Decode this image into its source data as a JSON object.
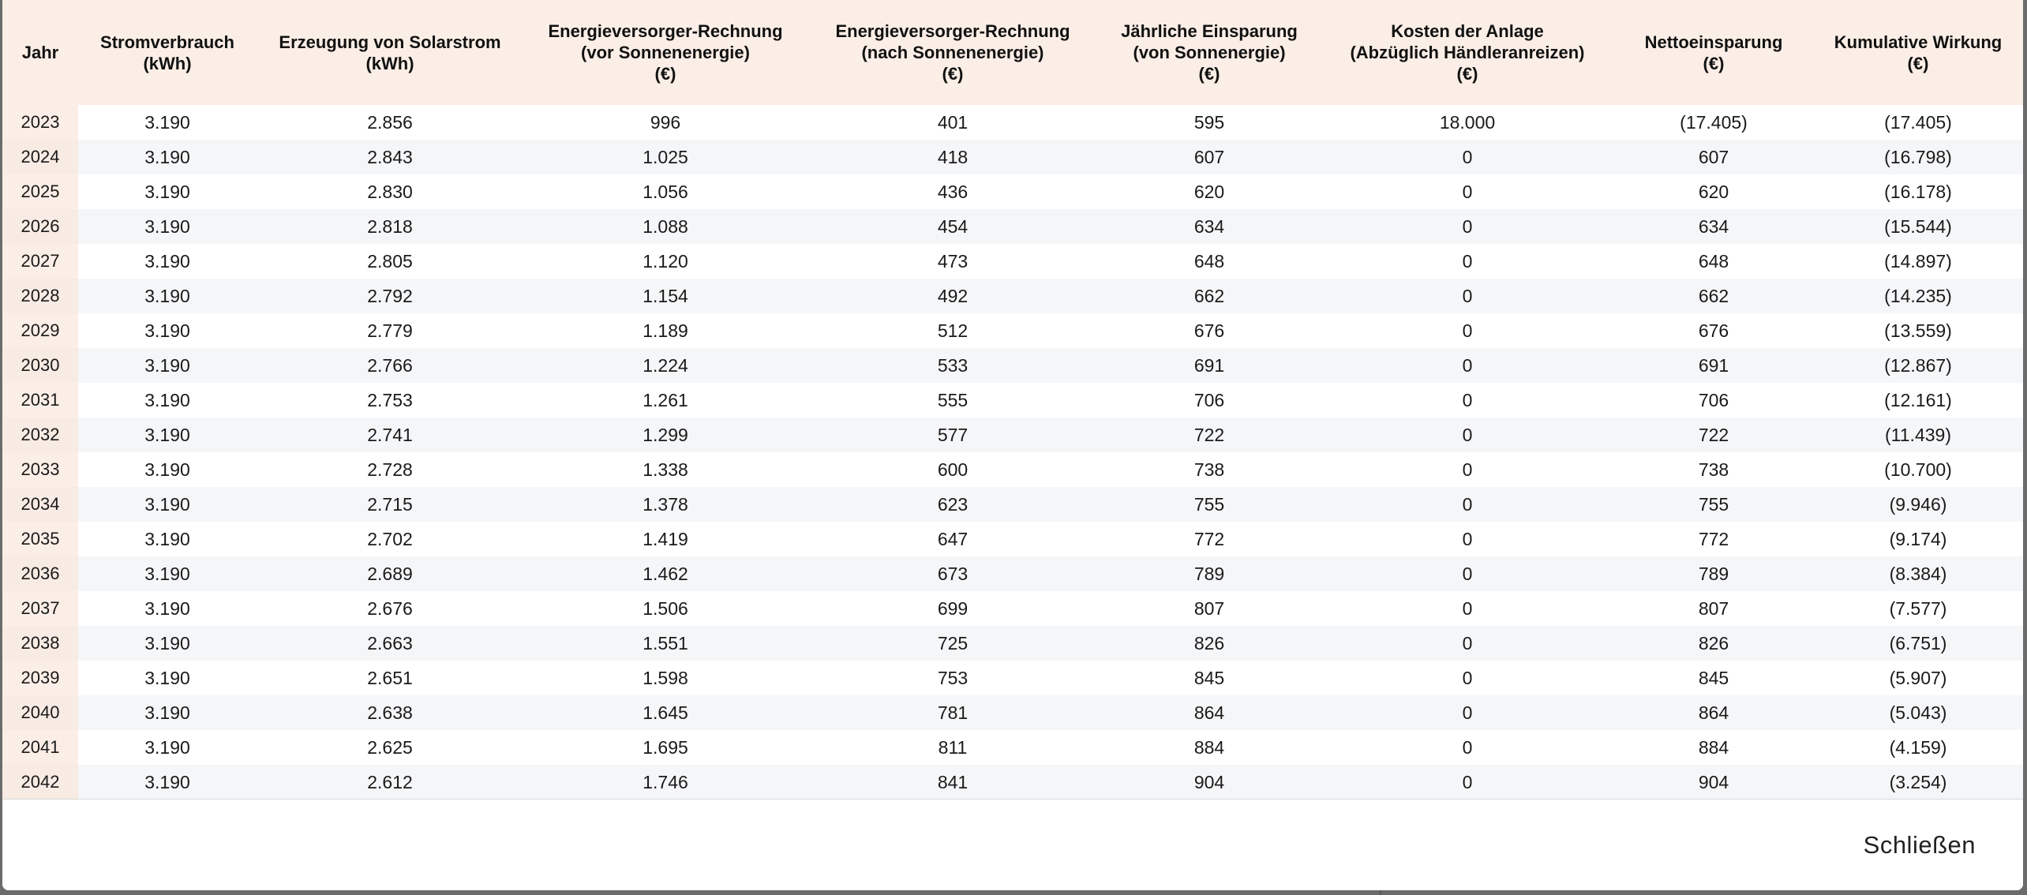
{
  "table": {
    "headers": [
      {
        "lines": [
          "Jahr"
        ]
      },
      {
        "lines": [
          "Stromverbrauch",
          "(kWh)"
        ]
      },
      {
        "lines": [
          "Erzeugung von Solarstrom",
          "(kWh)"
        ]
      },
      {
        "lines": [
          "Energieversorger-Rechnung",
          "(vor Sonnenenergie)",
          "(€)"
        ]
      },
      {
        "lines": [
          "Energieversorger-Rechnung",
          "(nach Sonnenenergie)",
          "(€)"
        ]
      },
      {
        "lines": [
          "Jährliche Einsparung",
          "(von Sonnenergie)",
          "(€)"
        ]
      },
      {
        "lines": [
          "Kosten der Anlage",
          "(Abzüglich Händleranreizen)",
          "(€)"
        ]
      },
      {
        "lines": [
          "Nettoeinsparung",
          "(€)"
        ]
      },
      {
        "lines": [
          "Kumulative Wirkung",
          "(€)"
        ]
      }
    ],
    "rows": [
      [
        "2023",
        "3.190",
        "2.856",
        "996",
        "401",
        "595",
        "18.000",
        "(17.405)",
        "(17.405)"
      ],
      [
        "2024",
        "3.190",
        "2.843",
        "1.025",
        "418",
        "607",
        "0",
        "607",
        "(16.798)"
      ],
      [
        "2025",
        "3.190",
        "2.830",
        "1.056",
        "436",
        "620",
        "0",
        "620",
        "(16.178)"
      ],
      [
        "2026",
        "3.190",
        "2.818",
        "1.088",
        "454",
        "634",
        "0",
        "634",
        "(15.544)"
      ],
      [
        "2027",
        "3.190",
        "2.805",
        "1.120",
        "473",
        "648",
        "0",
        "648",
        "(14.897)"
      ],
      [
        "2028",
        "3.190",
        "2.792",
        "1.154",
        "492",
        "662",
        "0",
        "662",
        "(14.235)"
      ],
      [
        "2029",
        "3.190",
        "2.779",
        "1.189",
        "512",
        "676",
        "0",
        "676",
        "(13.559)"
      ],
      [
        "2030",
        "3.190",
        "2.766",
        "1.224",
        "533",
        "691",
        "0",
        "691",
        "(12.867)"
      ],
      [
        "2031",
        "3.190",
        "2.753",
        "1.261",
        "555",
        "706",
        "0",
        "706",
        "(12.161)"
      ],
      [
        "2032",
        "3.190",
        "2.741",
        "1.299",
        "577",
        "722",
        "0",
        "722",
        "(11.439)"
      ],
      [
        "2033",
        "3.190",
        "2.728",
        "1.338",
        "600",
        "738",
        "0",
        "738",
        "(10.700)"
      ],
      [
        "2034",
        "3.190",
        "2.715",
        "1.378",
        "623",
        "755",
        "0",
        "755",
        "(9.946)"
      ],
      [
        "2035",
        "3.190",
        "2.702",
        "1.419",
        "647",
        "772",
        "0",
        "772",
        "(9.174)"
      ],
      [
        "2036",
        "3.190",
        "2.689",
        "1.462",
        "673",
        "789",
        "0",
        "789",
        "(8.384)"
      ],
      [
        "2037",
        "3.190",
        "2.676",
        "1.506",
        "699",
        "807",
        "0",
        "807",
        "(7.577)"
      ],
      [
        "2038",
        "3.190",
        "2.663",
        "1.551",
        "725",
        "826",
        "0",
        "826",
        "(6.751)"
      ],
      [
        "2039",
        "3.190",
        "2.651",
        "1.598",
        "753",
        "845",
        "0",
        "845",
        "(5.907)"
      ],
      [
        "2040",
        "3.190",
        "2.638",
        "1.645",
        "781",
        "864",
        "0",
        "864",
        "(5.043)"
      ],
      [
        "2041",
        "3.190",
        "2.625",
        "1.695",
        "811",
        "884",
        "0",
        "884",
        "(4.159)"
      ],
      [
        "2042",
        "3.190",
        "2.612",
        "1.746",
        "841",
        "904",
        "0",
        "904",
        "(3.254)"
      ]
    ]
  },
  "footer": {
    "close_label": "Schließen"
  },
  "colors": {
    "header_bg": "#fbeee6",
    "row_alt_bg": "#f5f6f8",
    "backdrop": "#6b6b6b"
  }
}
